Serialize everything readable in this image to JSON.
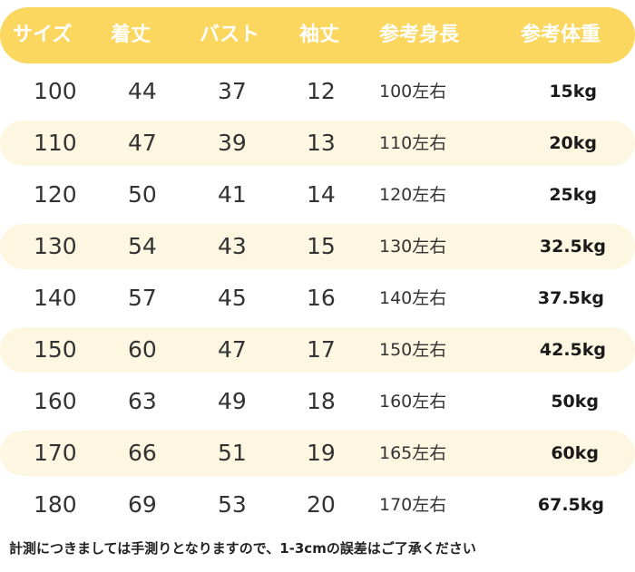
{
  "headers": [
    "サイズ",
    "着丈",
    "バスト",
    "袖丈",
    "参考身長",
    "参考体重"
  ],
  "rows": [
    [
      "100",
      "44",
      "37",
      "12",
      "100左右",
      "15kg"
    ],
    [
      "110",
      "47",
      "39",
      "13",
      "110左右",
      "20kg"
    ],
    [
      "120",
      "50",
      "41",
      "14",
      "120左右",
      "25kg"
    ],
    [
      "130",
      "54",
      "43",
      "15",
      "130左右",
      "32.5kg"
    ],
    [
      "140",
      "57",
      "45",
      "16",
      "140左右",
      "37.5kg"
    ],
    [
      "150",
      "60",
      "47",
      "17",
      "150左右",
      "42.5kg"
    ],
    [
      "160",
      "63",
      "49",
      "18",
      "160左右",
      "50kg"
    ],
    [
      "170",
      "66",
      "51",
      "19",
      "165左右",
      "60kg"
    ],
    [
      "180",
      "69",
      "53",
      "20",
      "170左右",
      "67.5kg"
    ]
  ],
  "note": "計測につきましては手測りとなりますので、1-3cmの誤差はご了承ください",
  "colors": {
    "header_bg": "#fbd760",
    "band_bg": "#fdf7e2"
  }
}
